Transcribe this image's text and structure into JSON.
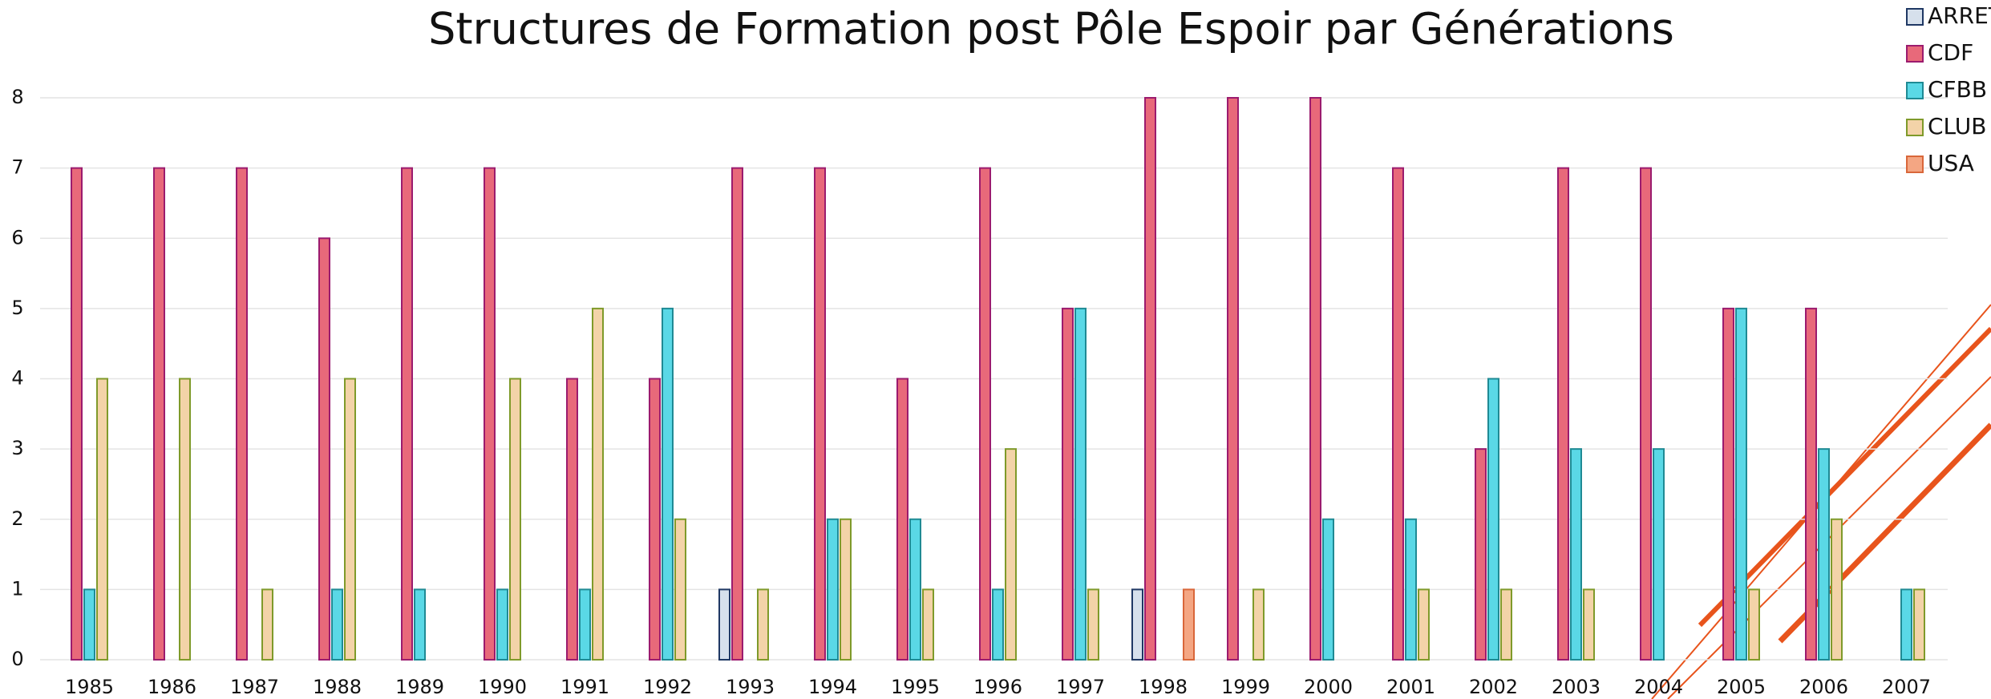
{
  "chart_data": {
    "type": "bar",
    "title": "Structures de Formation post Pôle Espoir par Générations",
    "categories": [
      "1985",
      "1986",
      "1987",
      "1988",
      "1989",
      "1990",
      "1991",
      "1992",
      "1993",
      "1994",
      "1995",
      "1996",
      "1997",
      "1998",
      "1999",
      "2000",
      "2001",
      "2002",
      "2003",
      "2004",
      "2005",
      "2006",
      "2007"
    ],
    "series": [
      {
        "name": "ARRET",
        "color": "#d6e0ec",
        "stroke": "#1f3864",
        "values": [
          null,
          null,
          null,
          null,
          null,
          null,
          null,
          null,
          1,
          null,
          null,
          null,
          null,
          1,
          null,
          null,
          null,
          null,
          null,
          null,
          null,
          null,
          null
        ]
      },
      {
        "name": "CDF",
        "color": "#e8697a",
        "stroke": "#9b1b6e",
        "values": [
          7,
          7,
          7,
          6,
          7,
          7,
          4,
          4,
          7,
          7,
          4,
          7,
          5,
          8,
          8,
          8,
          7,
          3,
          7,
          7,
          5,
          5,
          null
        ]
      },
      {
        "name": "CFBB",
        "color": "#5ad8e6",
        "stroke": "#1f8a94",
        "values": [
          1,
          null,
          null,
          1,
          1,
          1,
          1,
          5,
          null,
          2,
          2,
          1,
          5,
          null,
          null,
          2,
          2,
          4,
          3,
          3,
          5,
          3,
          1
        ]
      },
      {
        "name": "CLUB",
        "color": "#f3d3a8",
        "stroke": "#7f9a2a",
        "values": [
          4,
          4,
          1,
          4,
          null,
          4,
          5,
          2,
          1,
          2,
          1,
          3,
          1,
          null,
          1,
          null,
          1,
          1,
          1,
          null,
          1,
          2,
          1
        ]
      },
      {
        "name": "USA",
        "color": "#f4a683",
        "stroke": "#d9673a",
        "values": [
          null,
          null,
          null,
          null,
          null,
          null,
          null,
          null,
          null,
          null,
          null,
          null,
          null,
          1,
          null,
          null,
          null,
          null,
          null,
          null,
          null,
          null,
          null
        ]
      }
    ],
    "ylim": [
      0,
      8
    ],
    "yticks": [
      0,
      1,
      2,
      3,
      4,
      5,
      6,
      7,
      8
    ],
    "grid": true,
    "legend": "top-right"
  }
}
